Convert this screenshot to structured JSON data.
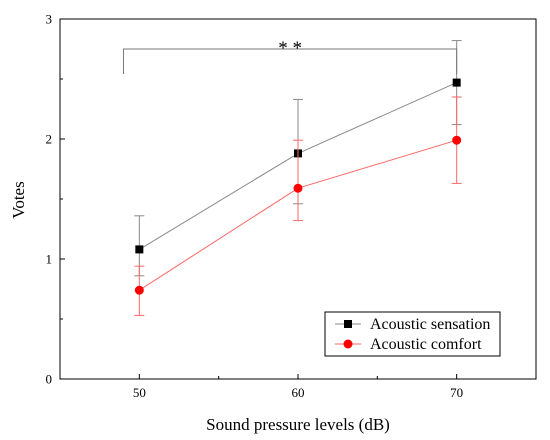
{
  "chart_data": {
    "type": "line",
    "xlabel": "Sound pressure levels (dB)",
    "ylabel": "Votes",
    "xlim": [
      45,
      75
    ],
    "ylim": [
      0,
      3
    ],
    "x_ticks": [
      "50",
      "60",
      "70"
    ],
    "y_ticks": [
      "0",
      "1",
      "2",
      "3"
    ],
    "grid": false,
    "legend_position": "bottom-right",
    "series": [
      {
        "name": "Acoustic sensation",
        "color": "#000000",
        "line_color": "#888888",
        "marker": "square",
        "x": [
          50,
          60,
          70
        ],
        "y": [
          1.08,
          1.88,
          2.47
        ],
        "err_low": [
          0.22,
          0.42,
          0.35
        ],
        "err_high": [
          0.28,
          0.45,
          0.35
        ]
      },
      {
        "name": "Acoustic comfort",
        "color": "#ff0000",
        "line_color": "#ff6666",
        "marker": "circle",
        "x": [
          50,
          60,
          70
        ],
        "y": [
          0.74,
          1.59,
          1.99
        ],
        "err_low": [
          0.21,
          0.27,
          0.36
        ],
        "err_high": [
          0.2,
          0.4,
          0.36
        ]
      }
    ],
    "annotations": [
      {
        "text": "* *",
        "type": "significance-bracket",
        "x_start": 49,
        "x_end": 70,
        "y": 2.75
      }
    ]
  }
}
